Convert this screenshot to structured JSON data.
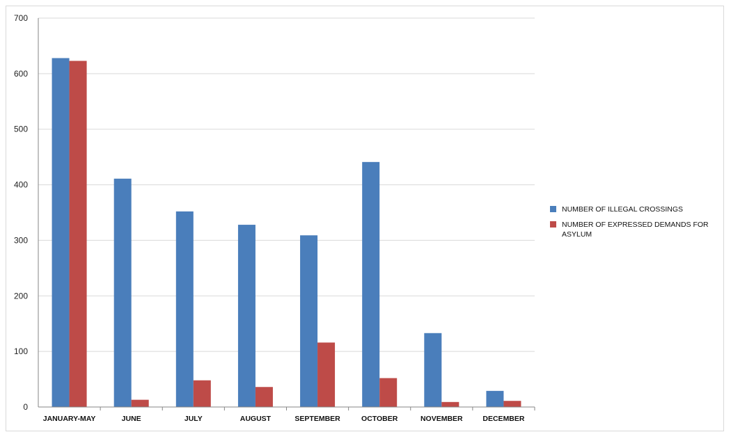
{
  "colors": {
    "series1": "#4a7ebb",
    "series2": "#be4b48",
    "grid": "#d9d9d9",
    "axis": "#868686"
  },
  "chart_data": {
    "type": "bar",
    "categories": [
      "JANUARY-MAY",
      "JUNE",
      "JULY",
      "AUGUST",
      "SEPTEMBER",
      "OCTOBER",
      "NOVEMBER",
      "DECEMBER"
    ],
    "series": [
      {
        "name": "NUMBER OF ILLEGAL CROSSINGS",
        "values": [
          628,
          411,
          352,
          328,
          309,
          441,
          133,
          29
        ]
      },
      {
        "name": "NUMBER OF EXPRESSED DEMANDS FOR ASYLUM",
        "values": [
          623,
          13,
          48,
          36,
          116,
          52,
          9,
          11
        ]
      }
    ],
    "ylim": [
      0,
      700
    ],
    "yticks": [
      "0",
      "100",
      "200",
      "300",
      "400",
      "500",
      "600",
      "700"
    ],
    "grid": true,
    "legend": "right"
  }
}
